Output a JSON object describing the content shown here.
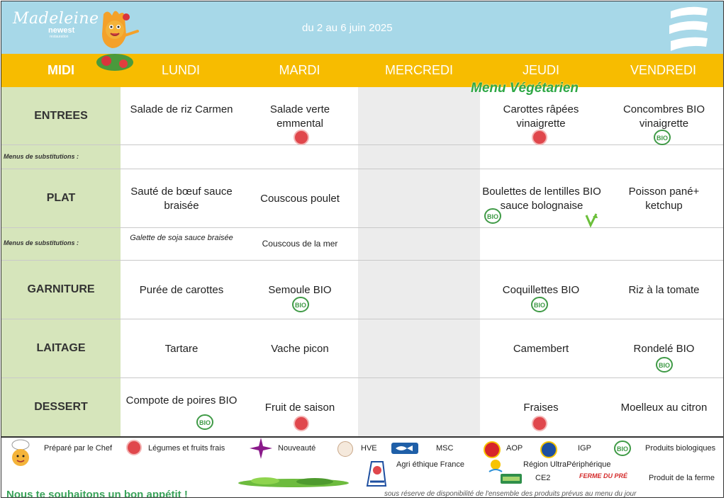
{
  "header": {
    "brand_name": "Madeleine",
    "brand_sub": "newest",
    "brand_sub2": "restauration",
    "date_range": "du 2 au 6 juin 2025"
  },
  "day_header": {
    "meal": "MIDI",
    "days": [
      "LUNDI",
      "MARDI",
      "MERCREDI",
      "JEUDI",
      "VENDREDI"
    ]
  },
  "banner": "Menu Végétarien",
  "rows": {
    "entrees": "ENTREES",
    "subs1": "Menus de substitutions :",
    "plat": "PLAT",
    "subs2": "Menus de substitutions :",
    "garniture": "GARNITURE",
    "laitage": "LAITAGE",
    "dessert": "DESSERT"
  },
  "menu": {
    "entrees": [
      "Salade de riz Carmen",
      "Salade verte emmental",
      "",
      "Carottes râpées vinaigrette",
      "Concombres BIO vinaigrette"
    ],
    "plat": [
      "Sauté de bœuf sauce braisée",
      "Couscous poulet",
      "",
      "Boulettes de lentilles BIO sauce bolognaise",
      "Poisson pané+ ketchup"
    ],
    "subs": [
      "Galette de soja sauce braisée",
      "Couscous de la mer",
      "",
      "",
      ""
    ],
    "garniture": [
      "Purée de carottes",
      "Semoule BIO",
      "",
      "Coquillettes BIO",
      "Riz à la tomate"
    ],
    "laitage": [
      "Tartare",
      "Vache picon",
      "",
      "Camembert",
      "Rondelé BIO"
    ],
    "dessert": [
      "Compote de poires BIO",
      "Fruit de saison",
      "",
      "Fraises",
      "Moelleux au citron"
    ]
  },
  "legend": {
    "chef": "Préparé par le Chef",
    "legumes": "Légumes et fruits frais",
    "nouveaute": "Nouveauté",
    "hve": "HVE",
    "msc": "MSC",
    "aop": "AOP",
    "igp": "IGP",
    "bio": "Produits biologiques",
    "agri": "Agri éthique France",
    "region": "Région UltraPériphérique",
    "ce2": "CE2",
    "ferme_logo": "FERME DU PRÉ",
    "ferme": "Produit de la ferme",
    "bio_badge": "BIO"
  },
  "footer": {
    "appetit": "Nous te souhaitons un bon appétit !",
    "reserve": "sous réserve de disponibilité de l'ensemble des produits prévus au menu du jour"
  },
  "colors": {
    "header_bg": "#a7d8e8",
    "day_bg": "#f7bc00",
    "label_bg": "#d6e5bb",
    "wed_bg": "#ececec",
    "veg_green": "#2fa846",
    "bio_green": "#3f9a46",
    "fresh_red": "#e0474c"
  }
}
